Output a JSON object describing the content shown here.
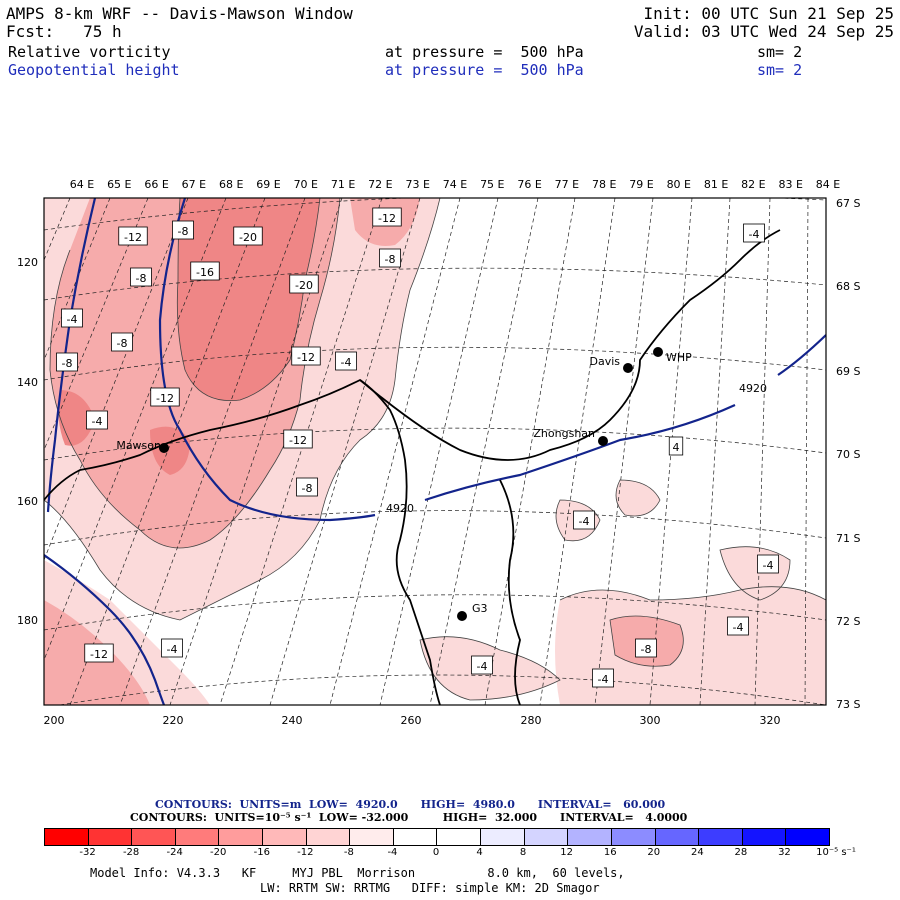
{
  "header": {
    "title": "AMPS 8-km WRF -- Davis-Mawson Window",
    "init": "Init: 00 UTC Sun 21 Sep 25",
    "fcst": "Fcst:   75 h",
    "valid": "Valid: 03 UTC Wed 24 Sep 25",
    "field1": {
      "name": "Relative vorticity",
      "level": "at pressure =  500 hPa",
      "sm": "sm= 2"
    },
    "field2": {
      "name": "Geopotential height",
      "level": "at pressure =  500 hPa",
      "sm": "sm= 2"
    }
  },
  "map": {
    "top_lon_labels": [
      "64 E",
      "65 E",
      "66 E",
      "67 E",
      "68 E",
      "69 E",
      "70 E",
      "71 E",
      "72 E",
      "73 E",
      "74 E",
      "75 E",
      "76 E",
      "77 E",
      "78 E",
      "79 E",
      "80 E",
      "81 E",
      "82 E",
      "83 E",
      "84 E"
    ],
    "right_lat_labels": [
      "67 S",
      "68 S",
      "69 S",
      "70 S",
      "71 S",
      "72 S",
      "73 S"
    ],
    "left_y_labels": [
      "120",
      "140",
      "160",
      "180"
    ],
    "bottom_x_labels": [
      "200",
      "220",
      "240",
      "260",
      "280",
      "300",
      "320"
    ],
    "stations": [
      {
        "name": "Mawson"
      },
      {
        "name": "Davis"
      },
      {
        "name": "WHP"
      },
      {
        "name": "Zhongshan"
      },
      {
        "name": "G3"
      }
    ],
    "height_contour_labels": [
      "4920",
      "4920"
    ],
    "vorticity_labels": [
      "-12",
      "-8",
      "-20",
      "-12",
      "-8",
      "-16",
      "-20",
      "-8",
      "-4",
      "-8",
      "-12",
      "-4",
      "-8",
      "-12",
      "-4",
      "-12",
      "-8",
      "-4",
      "4",
      "-4",
      "-4",
      "-12",
      "-4",
      "-4",
      "-8",
      "-4",
      "-4"
    ],
    "colors": {
      "height_contour": "#13248c",
      "coast": "#000000",
      "fill_light": "#fbdada",
      "fill_mid": "#f6abab",
      "fill_dark": "#ef8686"
    }
  },
  "contour_info": {
    "line1": "CONTOURS:  UNITS=m  LOW=  4920.0      HIGH=  4980.0      INTERVAL=   60.000",
    "line2": "CONTOURS:  UNITS=10⁻⁵ s⁻¹  LOW= -32.000         HIGH=  32.000      INTERVAL=   4.0000"
  },
  "legend": {
    "colors": [
      "#ff0000",
      "#ff3333",
      "#ff5555",
      "#ff7b7b",
      "#ff9c9c",
      "#ffb9b9",
      "#ffd4d4",
      "#ffecec",
      "#ffffff",
      "#ffffff",
      "#ececff",
      "#d4d4ff",
      "#b3b3ff",
      "#8c8cff",
      "#6666ff",
      "#3d3dff",
      "#1414ff",
      "#0000ff"
    ],
    "labels": [
      "-32",
      "-28",
      "-24",
      "-20",
      "-16",
      "-12",
      "-8",
      "-4",
      "0",
      "4",
      "8",
      "12",
      "16",
      "20",
      "24",
      "28",
      "32",
      "10⁻⁵ s⁻¹"
    ]
  },
  "model_info": {
    "line1": "Model Info: V4.3.3   KF     MYJ PBL  Morrison          8.0 km,  60 levels,",
    "line2": "LW: RRTM SW: RRTMG   DIFF: simple KM: 2D Smagor"
  }
}
